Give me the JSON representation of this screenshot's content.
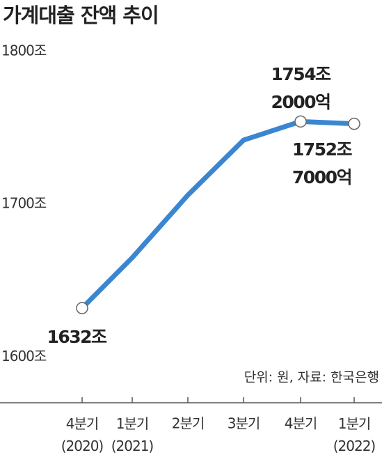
{
  "chart_data": {
    "type": "line",
    "title": "가계대출 잔액 추이",
    "categories": [
      "4분기\n(2020)",
      "1분기\n(2021)",
      "2분기",
      "3분기",
      "4분기",
      "1분기\n(2022)"
    ],
    "values": [
      1632,
      1665,
      1706,
      1742,
      1754.2,
      1752.7
    ],
    "value_labels": [
      "1632조",
      null,
      null,
      null,
      "1754조\n2000억",
      "1752조\n7000억"
    ],
    "color": "#3a86d0",
    "ylim": [
      1570,
      1800
    ],
    "yticks": [
      {
        "value": 1600,
        "label": "1600조"
      },
      {
        "value": 1700,
        "label": "1700조"
      },
      {
        "value": 1800,
        "label": "1800조"
      }
    ],
    "source": "단위: 원, 자료: 한국은행"
  }
}
